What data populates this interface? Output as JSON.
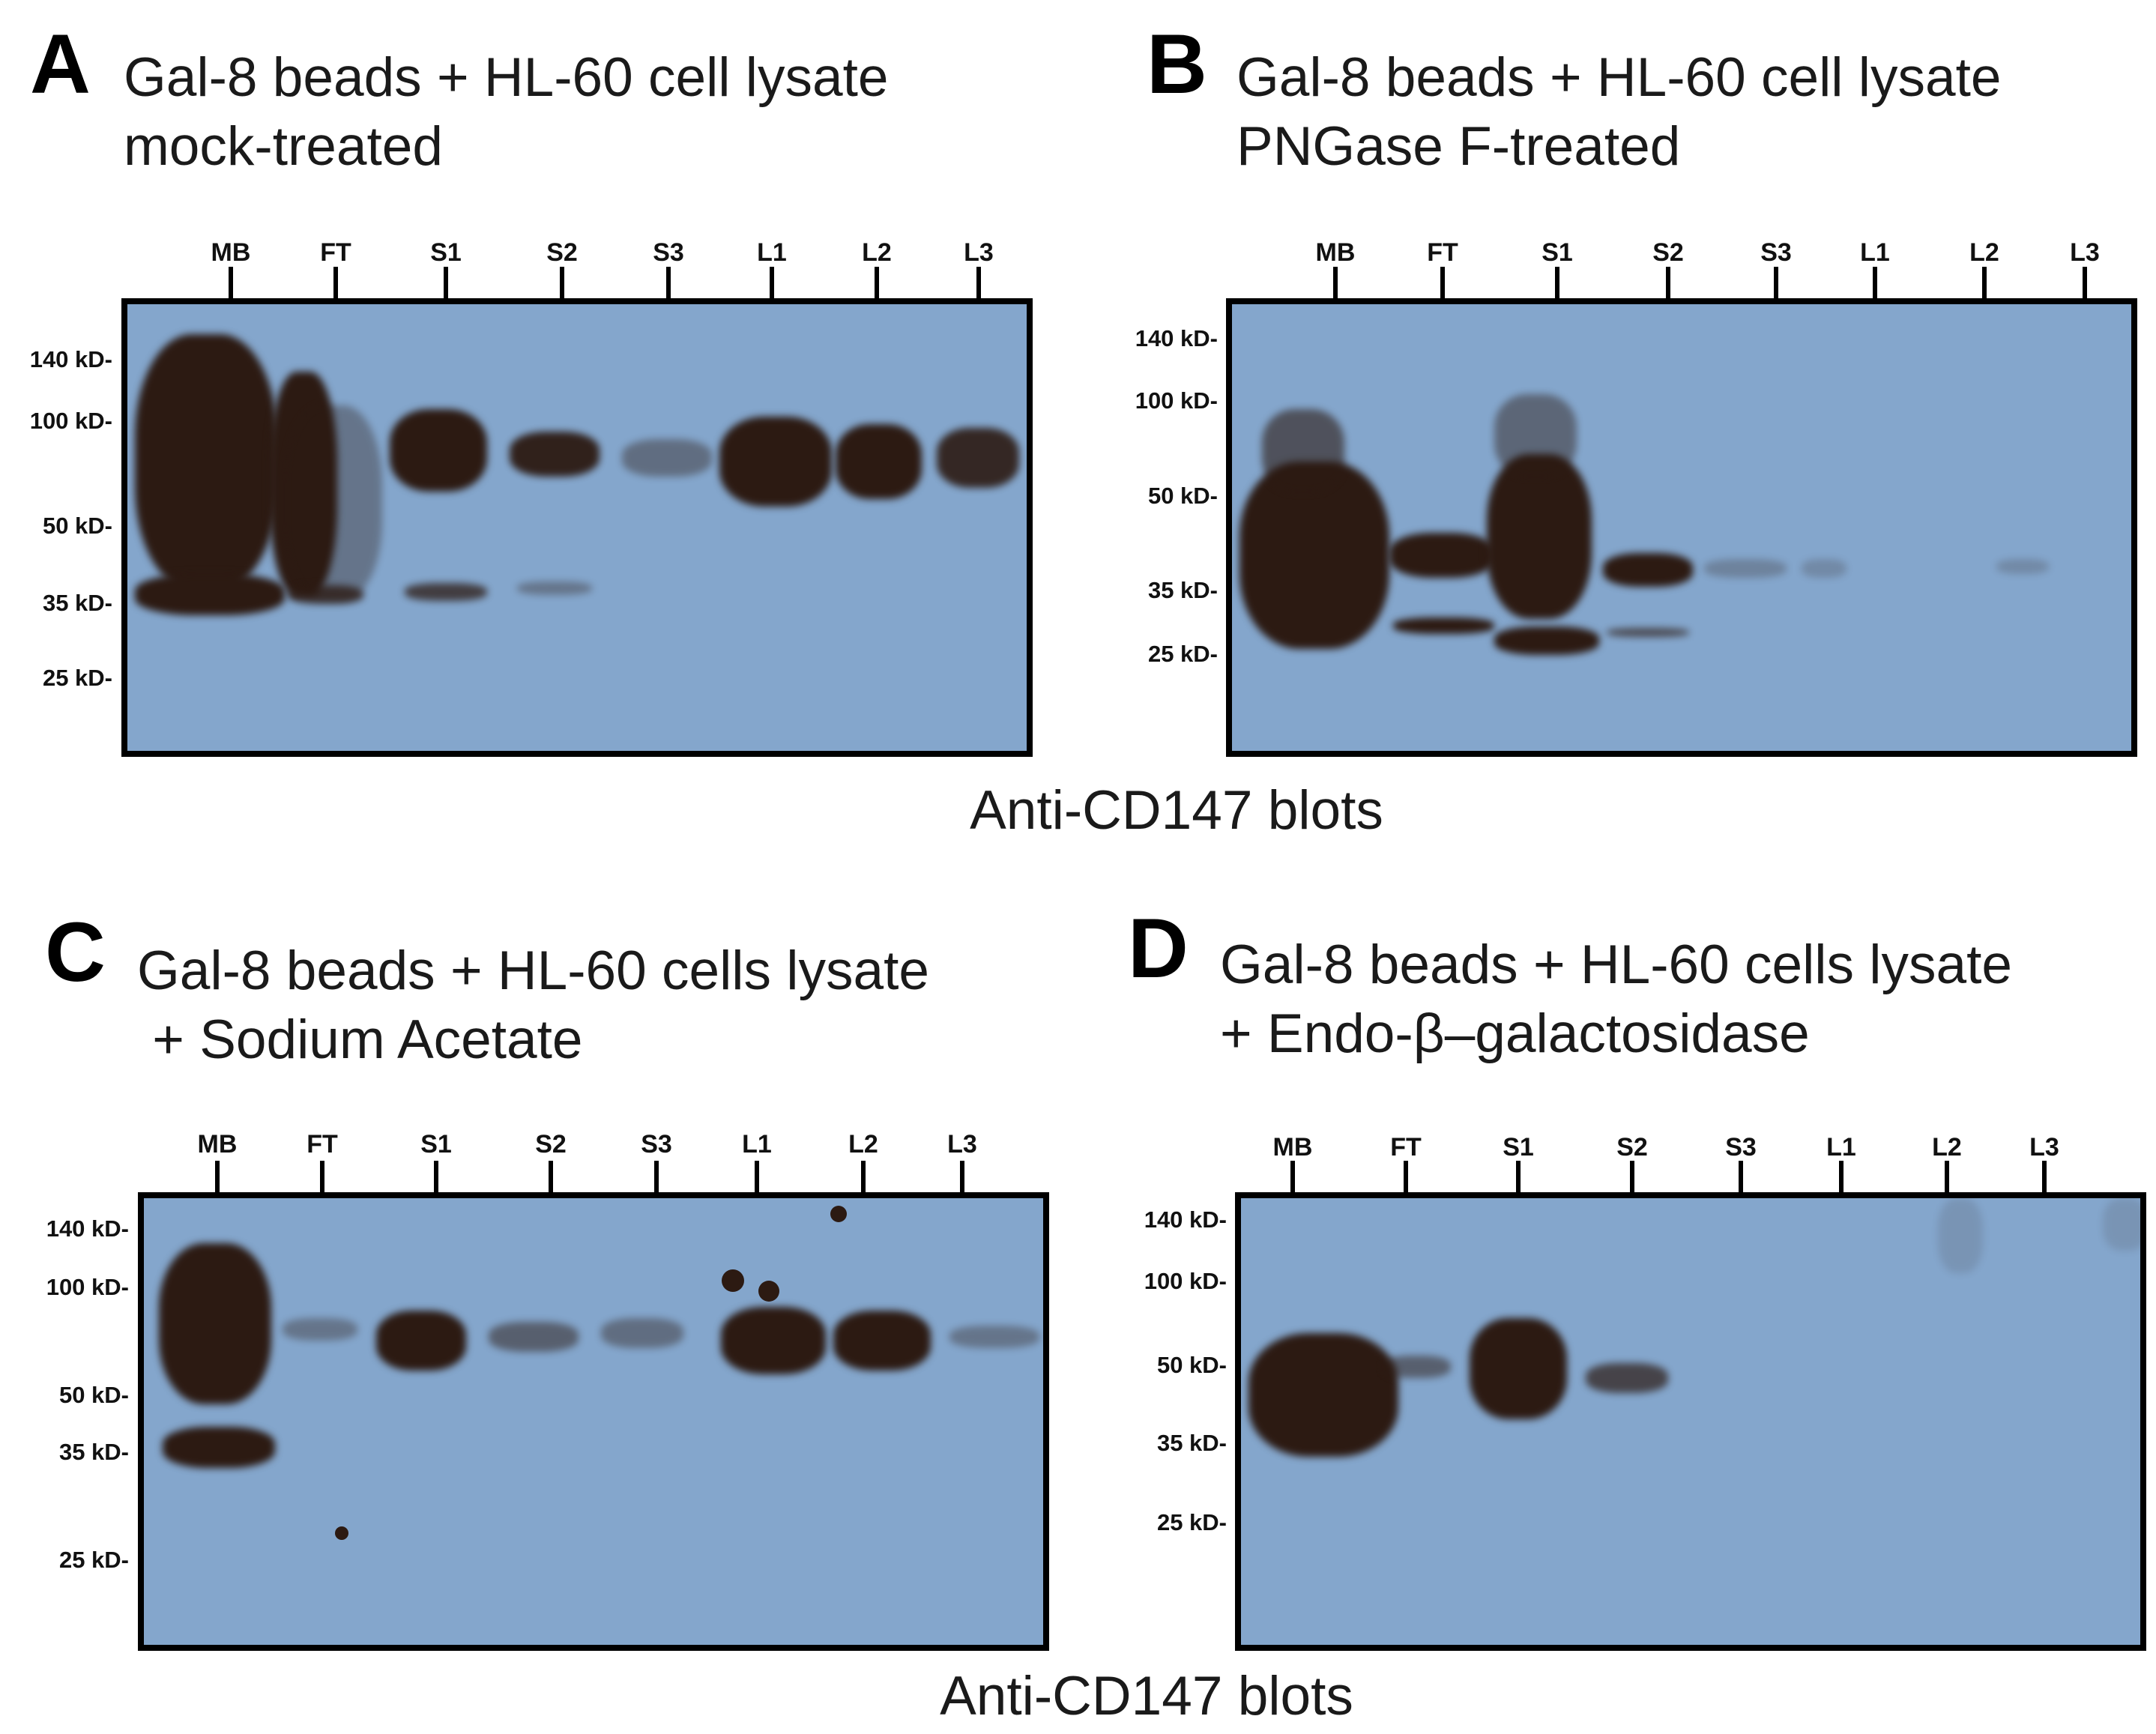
{
  "figure": {
    "caption_top": "Anti-CD147 blots",
    "caption_bottom": "Anti-CD147 blots",
    "lanes": [
      "MB",
      "FT",
      "S1",
      "S2",
      "S3",
      "L1",
      "L2",
      "L3"
    ],
    "panels": [
      {
        "letter": "A",
        "title_line1": "Gal-8 beads + HL-60 cell lysate",
        "title_line2": "mock-treated",
        "markers": [
          "140 kD-",
          "100 kD-",
          "50 kD-",
          "35 kD-",
          "25 kD-"
        ]
      },
      {
        "letter": "B",
        "title_line1": "Gal-8 beads + HL-60 cell lysate",
        "title_line2": "PNGase F-treated",
        "markers": [
          "140 kD-",
          "100 kD-",
          "50 kD-",
          "35 kD-",
          "25 kD-"
        ]
      },
      {
        "letter": "C",
        "title_line1": "Gal-8 beads + HL-60 cells lysate",
        "title_line2": " + Sodium Acetate",
        "markers": [
          "140 kD-",
          "100 kD-",
          "50 kD-",
          "35 kD-",
          "25 kD-"
        ]
      },
      {
        "letter": "D",
        "title_line1": "Gal-8 beads + HL-60 cells lysate",
        "title_line2": "+ Endo-β–galactosidase",
        "markers": [
          "140 kD-",
          "100 kD-",
          "50 kD-",
          "35 kD-",
          "25 kD-"
        ]
      }
    ]
  }
}
